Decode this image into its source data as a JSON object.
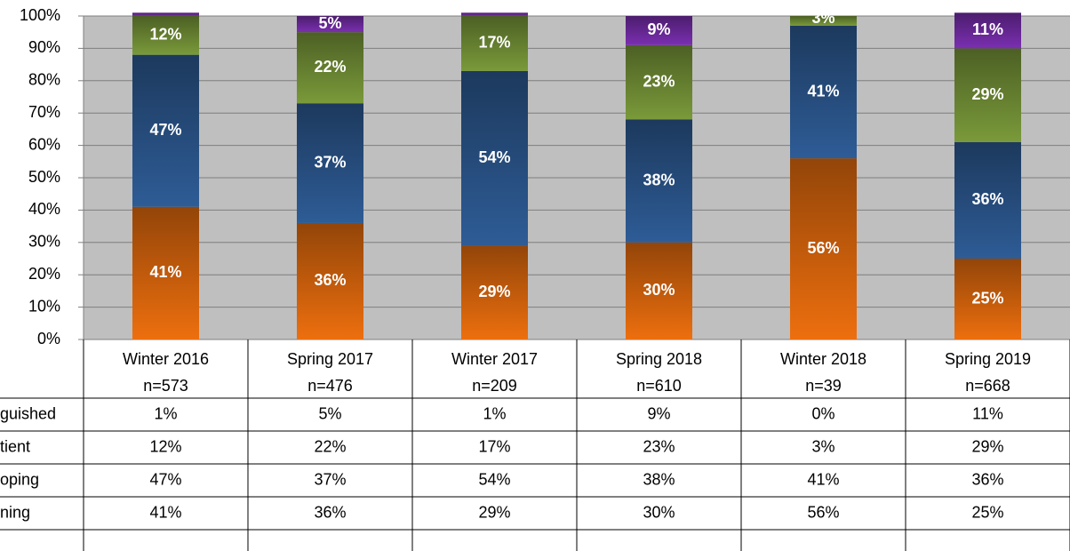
{
  "chart_data": {
    "type": "stacked_bar",
    "categories": [
      "Winter 2016",
      "Spring 2017",
      "Winter 2017",
      "Spring 2018",
      "Winter 2018",
      "Spring 2019"
    ],
    "sample_sizes": [
      "n=573",
      "n=476",
      "n=209",
      "n=610",
      "n=39",
      "n=668"
    ],
    "ylim": [
      0,
      100
    ],
    "yticks": [
      {
        "value": 0,
        "label": "0%"
      },
      {
        "value": 10,
        "label": "10%"
      },
      {
        "value": 20,
        "label": "20%"
      },
      {
        "value": 30,
        "label": "30%"
      },
      {
        "value": 40,
        "label": "40%"
      },
      {
        "value": 50,
        "label": "50%"
      },
      {
        "value": 60,
        "label": "60%"
      },
      {
        "value": 70,
        "label": "70%"
      },
      {
        "value": 80,
        "label": "80%"
      },
      {
        "value": 90,
        "label": "90%"
      },
      {
        "value": 100,
        "label": "100%"
      }
    ],
    "grid": true,
    "series": [
      {
        "name": "ning",
        "color": "#ed6f0e",
        "values": [
          41,
          36,
          29,
          30,
          56,
          25
        ],
        "value_labels": [
          "41%",
          "36%",
          "29%",
          "30%",
          "56%",
          "25%"
        ]
      },
      {
        "name": "oping",
        "color": "#2e5c96",
        "values": [
          47,
          37,
          54,
          38,
          41,
          36
        ],
        "value_labels": [
          "47%",
          "37%",
          "54%",
          "38%",
          "41%",
          "36%"
        ]
      },
      {
        "name": "tient",
        "color": "#7a9a3a",
        "values": [
          12,
          22,
          17,
          23,
          3,
          29
        ],
        "value_labels": [
          "12%",
          "22%",
          "17%",
          "23%",
          "3%",
          "29%"
        ]
      },
      {
        "name": "guished",
        "color": "#7a2fb0",
        "values": [
          1,
          5,
          1,
          9,
          0,
          11
        ],
        "value_labels": [
          "1%",
          "5%",
          "1%",
          "9%",
          "0%",
          "11%"
        ]
      }
    ]
  }
}
